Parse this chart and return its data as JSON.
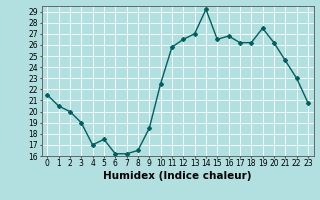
{
  "x": [
    0,
    1,
    2,
    3,
    4,
    5,
    6,
    7,
    8,
    9,
    10,
    11,
    12,
    13,
    14,
    15,
    16,
    17,
    18,
    19,
    20,
    21,
    22,
    23
  ],
  "y": [
    21.5,
    20.5,
    20.0,
    19.0,
    17.0,
    17.5,
    16.2,
    16.2,
    16.5,
    18.5,
    22.5,
    25.8,
    26.5,
    27.0,
    29.2,
    26.5,
    26.8,
    26.2,
    26.2,
    27.5,
    26.2,
    24.6,
    23.0,
    20.8
  ],
  "line_color": "#006060",
  "marker": "D",
  "marker_size": 2,
  "bg_color": "#b2e0e0",
  "grid_color": "#ffffff",
  "xlabel": "Humidex (Indice chaleur)",
  "xlim": [
    -0.5,
    23.5
  ],
  "ylim": [
    16,
    29.5
  ],
  "yticks": [
    16,
    17,
    18,
    19,
    20,
    21,
    22,
    23,
    24,
    25,
    26,
    27,
    28,
    29
  ],
  "xticks": [
    0,
    1,
    2,
    3,
    4,
    5,
    6,
    7,
    8,
    9,
    10,
    11,
    12,
    13,
    14,
    15,
    16,
    17,
    18,
    19,
    20,
    21,
    22,
    23
  ],
  "tick_label_fontsize": 5.5,
  "xlabel_fontsize": 7.5,
  "line_width": 1.0
}
